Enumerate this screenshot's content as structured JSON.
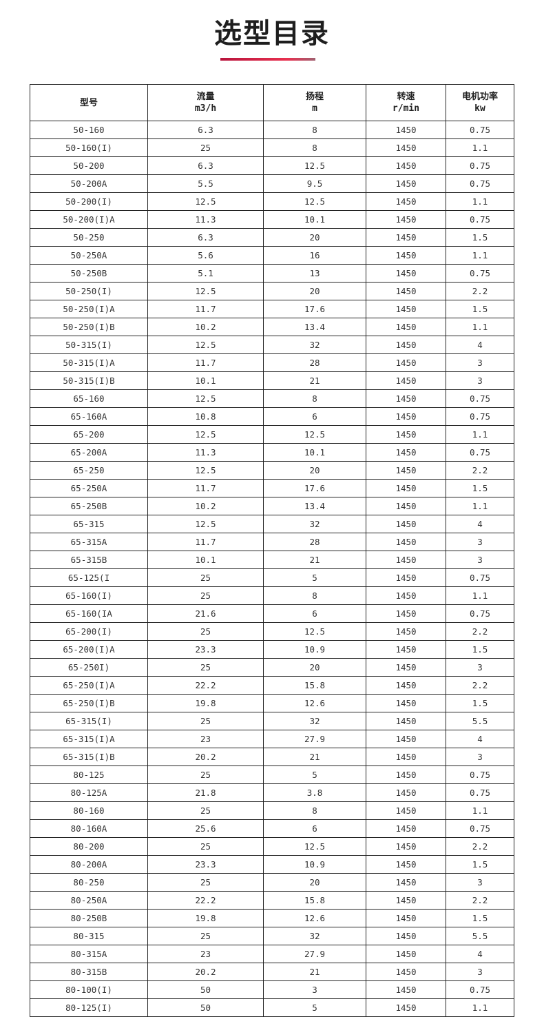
{
  "title": "选型目录",
  "accent_color": "#d9254a",
  "headers": [
    {
      "label": "型号",
      "unit": ""
    },
    {
      "label": "流量",
      "unit": "m3/h"
    },
    {
      "label": "扬程",
      "unit": "m"
    },
    {
      "label": "转速",
      "unit": "r/min"
    },
    {
      "label": "电机功率",
      "unit": "kw"
    }
  ],
  "rows": [
    [
      "50-160",
      "6.3",
      "8",
      "1450",
      "0.75"
    ],
    [
      "50-160(I)",
      "25",
      "8",
      "1450",
      "1.1"
    ],
    [
      "50-200",
      "6.3",
      "12.5",
      "1450",
      "0.75"
    ],
    [
      "50-200A",
      "5.5",
      "9.5",
      "1450",
      "0.75"
    ],
    [
      "50-200(I)",
      "12.5",
      "12.5",
      "1450",
      "1.1"
    ],
    [
      "50-200(I)A",
      "11.3",
      "10.1",
      "1450",
      "0.75"
    ],
    [
      "50-250",
      "6.3",
      "20",
      "1450",
      "1.5"
    ],
    [
      "50-250A",
      "5.6",
      "16",
      "1450",
      "1.1"
    ],
    [
      "50-250B",
      "5.1",
      "13",
      "1450",
      "0.75"
    ],
    [
      "50-250(I)",
      "12.5",
      "20",
      "1450",
      "2.2"
    ],
    [
      "50-250(I)A",
      "11.7",
      "17.6",
      "1450",
      "1.5"
    ],
    [
      "50-250(I)B",
      "10.2",
      "13.4",
      "1450",
      "1.1"
    ],
    [
      "50-315(I)",
      "12.5",
      "32",
      "1450",
      "4"
    ],
    [
      "50-315(I)A",
      "11.7",
      "28",
      "1450",
      "3"
    ],
    [
      "50-315(I)B",
      "10.1",
      "21",
      "1450",
      "3"
    ],
    [
      "65-160",
      "12.5",
      "8",
      "1450",
      "0.75"
    ],
    [
      "65-160A",
      "10.8",
      "6",
      "1450",
      "0.75"
    ],
    [
      "65-200",
      "12.5",
      "12.5",
      "1450",
      "1.1"
    ],
    [
      "65-200A",
      "11.3",
      "10.1",
      "1450",
      "0.75"
    ],
    [
      "65-250",
      "12.5",
      "20",
      "1450",
      "2.2"
    ],
    [
      "65-250A",
      "11.7",
      "17.6",
      "1450",
      "1.5"
    ],
    [
      "65-250B",
      "10.2",
      "13.4",
      "1450",
      "1.1"
    ],
    [
      "65-315",
      "12.5",
      "32",
      "1450",
      "4"
    ],
    [
      "65-315A",
      "11.7",
      "28",
      "1450",
      "3"
    ],
    [
      "65-315B",
      "10.1",
      "21",
      "1450",
      "3"
    ],
    [
      "65-125(I",
      "25",
      "5",
      "1450",
      "0.75"
    ],
    [
      "65-160(I)",
      "25",
      "8",
      "1450",
      "1.1"
    ],
    [
      "65-160(IA",
      "21.6",
      "6",
      "1450",
      "0.75"
    ],
    [
      "65-200(I)",
      "25",
      "12.5",
      "1450",
      "2.2"
    ],
    [
      "65-200(I)A",
      "23.3",
      "10.9",
      "1450",
      "1.5"
    ],
    [
      "65-250I)",
      "25",
      "20",
      "1450",
      "3"
    ],
    [
      "65-250(I)A",
      "22.2",
      "15.8",
      "1450",
      "2.2"
    ],
    [
      "65-250(I)B",
      "19.8",
      "12.6",
      "1450",
      "1.5"
    ],
    [
      "65-315(I)",
      "25",
      "32",
      "1450",
      "5.5"
    ],
    [
      "65-315(I)A",
      "23",
      "27.9",
      "1450",
      "4"
    ],
    [
      "65-315(I)B",
      "20.2",
      "21",
      "1450",
      "3"
    ],
    [
      "80-125",
      "25",
      "5",
      "1450",
      "0.75"
    ],
    [
      "80-125A",
      "21.8",
      "3.8",
      "1450",
      "0.75"
    ],
    [
      "80-160",
      "25",
      "8",
      "1450",
      "1.1"
    ],
    [
      "80-160A",
      "25.6",
      "6",
      "1450",
      "0.75"
    ],
    [
      "80-200",
      "25",
      "12.5",
      "1450",
      "2.2"
    ],
    [
      "80-200A",
      "23.3",
      "10.9",
      "1450",
      "1.5"
    ],
    [
      "80-250",
      "25",
      "20",
      "1450",
      "3"
    ],
    [
      "80-250A",
      "22.2",
      "15.8",
      "1450",
      "2.2"
    ],
    [
      "80-250B",
      "19.8",
      "12.6",
      "1450",
      "1.5"
    ],
    [
      "80-315",
      "25",
      "32",
      "1450",
      "5.5"
    ],
    [
      "80-315A",
      "23",
      "27.9",
      "1450",
      "4"
    ],
    [
      "80-315B",
      "20.2",
      "21",
      "1450",
      "3"
    ],
    [
      "80-100(I)",
      "50",
      "3",
      "1450",
      "0.75"
    ],
    [
      "80-125(I)",
      "50",
      "5",
      "1450",
      "1.1"
    ]
  ]
}
